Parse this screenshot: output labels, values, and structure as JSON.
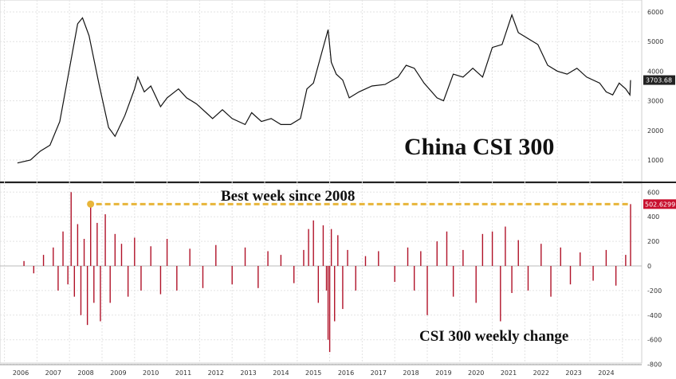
{
  "chart_data": [
    {
      "type": "line",
      "title": "China CSI 300",
      "xlabel": "",
      "ylabel": "",
      "ylim": [
        500,
        6300
      ],
      "yticks": [
        "1000",
        "2000",
        "3000",
        "4000",
        "5000",
        "6000"
      ],
      "last_value_label": "3703.68",
      "series": [
        {
          "x": [
            2005.9,
            2006.3,
            2006.6,
            2006.9,
            2007.2,
            2007.45,
            2007.75,
            2007.9,
            2008.1,
            2008.4,
            2008.7,
            2008.9,
            2009.2,
            2009.5,
            2009.6,
            2009.8,
            2010.0,
            2010.3,
            2010.5,
            2010.85,
            2011.1,
            2011.4,
            2011.7,
            2011.9,
            2012.2,
            2012.5,
            2012.9,
            2013.1,
            2013.4,
            2013.7,
            2014.0,
            2014.3,
            2014.6,
            2014.8,
            2015.0,
            2015.3,
            2015.45,
            2015.55,
            2015.7,
            2015.9,
            2016.1,
            2016.4,
            2016.8,
            2017.2,
            2017.6,
            2017.85,
            2018.1,
            2018.4,
            2018.8,
            2019.0,
            2019.3,
            2019.6,
            2019.9,
            2020.2,
            2020.5,
            2020.8,
            2021.1,
            2021.3,
            2021.6,
            2021.9,
            2022.2,
            2022.5,
            2022.8,
            2023.1,
            2023.4,
            2023.8,
            2024.0,
            2024.2,
            2024.4,
            2024.6,
            2024.73,
            2024.75
          ],
          "values": [
            900,
            1000,
            1300,
            1500,
            2300,
            3800,
            5600,
            5800,
            5200,
            3600,
            2100,
            1800,
            2500,
            3400,
            3800,
            3300,
            3500,
            2800,
            3100,
            3400,
            3100,
            2900,
            2600,
            2400,
            2700,
            2400,
            2200,
            2600,
            2300,
            2400,
            2200,
            2200,
            2400,
            3400,
            3600,
            4800,
            5400,
            4300,
            3900,
            3700,
            3100,
            3300,
            3500,
            3550,
            3800,
            4200,
            4100,
            3600,
            3100,
            3000,
            3900,
            3800,
            4100,
            3800,
            4800,
            4900,
            5900,
            5300,
            5100,
            4900,
            4200,
            4000,
            3900,
            4100,
            3800,
            3600,
            3300,
            3200,
            3600,
            3400,
            3200,
            3700
          ]
        }
      ]
    },
    {
      "type": "bar",
      "title": "CSI 300 weekly change",
      "xlabel": "",
      "ylabel": "",
      "ylim": [
        -860,
        680
      ],
      "yticks": [
        "-800",
        "-600",
        "-400",
        "-200",
        "0",
        "200",
        "400",
        "600"
      ],
      "last_value_label": "502.6299",
      "annotation": "Best week since 2008",
      "reference_value": 502.63,
      "series": [
        {
          "x": [
            2006.1,
            2006.4,
            2006.7,
            2007.0,
            2007.15,
            2007.3,
            2007.45,
            2007.55,
            2007.65,
            2007.75,
            2007.85,
            2007.95,
            2008.05,
            2008.15,
            2008.25,
            2008.35,
            2008.45,
            2008.6,
            2008.75,
            2008.9,
            2009.1,
            2009.3,
            2009.5,
            2009.7,
            2010.0,
            2010.3,
            2010.5,
            2010.8,
            2011.2,
            2011.6,
            2012.0,
            2012.5,
            2012.9,
            2013.3,
            2013.6,
            2014.0,
            2014.4,
            2014.7,
            2014.85,
            2015.0,
            2015.15,
            2015.3,
            2015.4,
            2015.45,
            2015.5,
            2015.55,
            2015.65,
            2015.75,
            2015.9,
            2016.05,
            2016.3,
            2016.6,
            2017.0,
            2017.5,
            2017.9,
            2018.1,
            2018.3,
            2018.5,
            2018.8,
            2019.1,
            2019.3,
            2019.6,
            2020.0,
            2020.2,
            2020.5,
            2020.75,
            2020.9,
            2021.1,
            2021.3,
            2021.6,
            2022.0,
            2022.3,
            2022.6,
            2022.9,
            2023.2,
            2023.6,
            2024.0,
            2024.3,
            2024.6,
            2024.75
          ],
          "values": [
            40,
            -60,
            90,
            150,
            -200,
            280,
            -150,
            600,
            -250,
            340,
            -400,
            220,
            -480,
            500,
            -300,
            350,
            -450,
            420,
            -300,
            260,
            180,
            -250,
            230,
            -200,
            160,
            -230,
            220,
            -200,
            140,
            -180,
            170,
            -150,
            150,
            -180,
            120,
            90,
            -140,
            130,
            300,
            370,
            -300,
            330,
            -200,
            -600,
            -700,
            300,
            -450,
            250,
            -350,
            130,
            -200,
            80,
            120,
            -130,
            150,
            -200,
            120,
            -400,
            200,
            280,
            -250,
            130,
            -300,
            260,
            280,
            -450,
            320,
            -220,
            210,
            -200,
            180,
            -250,
            150,
            -150,
            110,
            -120,
            130,
            -160,
            90,
            502.63
          ]
        }
      ]
    }
  ],
  "x_axis": {
    "labels": [
      "2006",
      "2007",
      "2008",
      "2009",
      "2010",
      "2011",
      "2012",
      "2013",
      "2014",
      "2015",
      "2016",
      "2017",
      "2018",
      "2019",
      "2020",
      "2021",
      "2022",
      "2023",
      "2024"
    ]
  },
  "colors": {
    "line": "#111111",
    "bars": "#b01228",
    "reference_line": "#e8b53a",
    "last_value_top_bg": "#222222",
    "last_value_bottom_bg": "#c8102e"
  }
}
